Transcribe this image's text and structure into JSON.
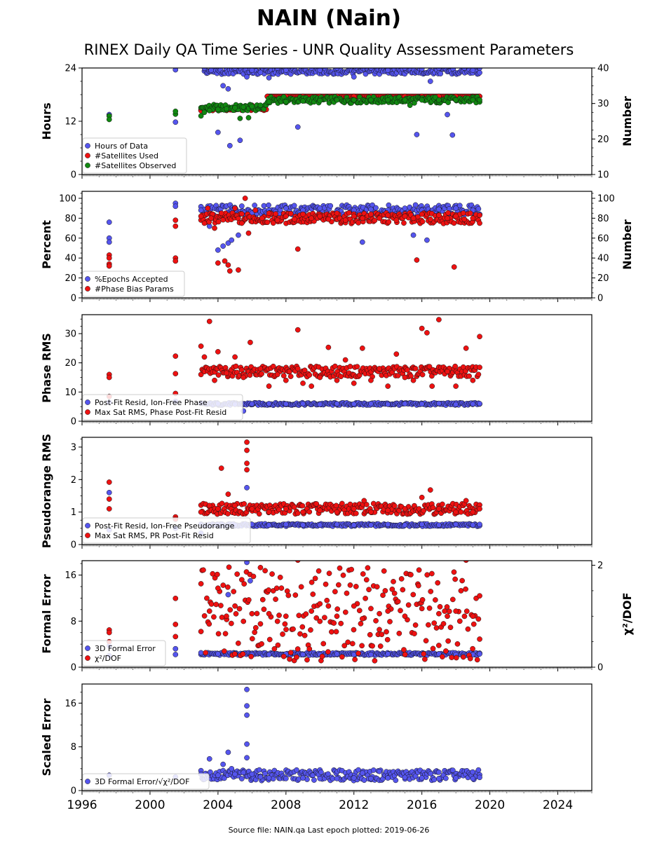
{
  "title": "NAIN (Nain)",
  "subtitle": "RINEX Daily QA Time Series - UNR Quality Assessment Parameters",
  "footer": "Source file: NAIN.qa Last epoch plotted: 2019-06-26",
  "colors": {
    "blue": "#5555ee",
    "red": "#ee1111",
    "green": "#118811",
    "edge": "#111111"
  },
  "chart_data": [
    {
      "type": "scatter",
      "panel": "hours",
      "ylabel": "Hours",
      "ylabel_right": "Number",
      "xlim": [
        1996,
        2026
      ],
      "ylim": [
        0,
        24
      ],
      "ylim_right": [
        10,
        40
      ],
      "yticks": [
        0,
        12,
        24
      ],
      "yticks_right": [
        10,
        20,
        30,
        40
      ],
      "legend": "lower-left",
      "series": [
        {
          "name": "Hours of Data",
          "color": "blue",
          "axis": "left",
          "x": [
            1997.6,
            1997.6,
            2001.5,
            2001.5,
            2003.2,
            2003.6,
            2004.0,
            2004.3,
            2004.6,
            2004.7,
            2005.0,
            2005.3,
            2005.7,
            2006.0,
            2006.5,
            2007.0,
            2007.5,
            2008.0,
            2008.7,
            2009.5,
            2010.0,
            2011.0,
            2012.0,
            2013.0,
            2014.0,
            2015.0,
            2015.7,
            2016.0,
            2016.5,
            2017.0,
            2017.5,
            2017.8,
            2018.5,
            2019.0,
            2019.4
          ],
          "y": [
            13.5,
            13.2,
            11.8,
            23.6,
            24.0,
            23.5,
            9.5,
            20.0,
            19.3,
            6.5,
            24.0,
            7.7,
            22.0,
            23.5,
            23.0,
            21.8,
            24.0,
            23.5,
            10.7,
            24.0,
            23.5,
            24.0,
            22.0,
            24.0,
            23.5,
            24.0,
            9.0,
            23.8,
            21.0,
            24.0,
            13.5,
            8.9,
            24.0,
            23.5,
            24.0
          ]
        },
        {
          "name": "#Satellites Used",
          "color": "red",
          "axis": "right",
          "x": [
            2003.0,
            2004.0,
            2005.0,
            2006.0,
            2006.9,
            2008.0,
            2009.0,
            2010.0,
            2011.0,
            2012.0,
            2013.0,
            2014.0,
            2015.0,
            2016.0,
            2017.0,
            2018.0,
            2019.0,
            2019.4
          ],
          "y": [
            28.0,
            28.5,
            29.0,
            29.5,
            32.0,
            32.0,
            32.0,
            32.0,
            32.0,
            32.0,
            32.0,
            32.0,
            32.0,
            32.0,
            32.0,
            32.0,
            32.0,
            32.0
          ]
        },
        {
          "name": "#Satellites Observed",
          "color": "green",
          "axis": "right",
          "x": [
            1997.6,
            1997.6,
            2001.5,
            2001.5,
            2003.0,
            2003.2,
            2003.5,
            2004.0,
            2004.5,
            2005.0,
            2005.5,
            2006.0,
            2006.5,
            2007.0,
            2008.0,
            2009.0,
            2010.0,
            2011.0,
            2012.0,
            2013.0,
            2014.0,
            2015.0,
            2016.0,
            2017.0,
            2018.0,
            2019.0,
            2019.4,
            2005.3,
            2005.8,
            2015.3
          ],
          "y": [
            26.5,
            25.5,
            27.0,
            27.8,
            26.5,
            27.5,
            28.0,
            28.3,
            28.5,
            28.8,
            29.0,
            29.2,
            29.5,
            30.5,
            30.5,
            30.7,
            30.8,
            31.0,
            31.0,
            31.0,
            31.0,
            31.0,
            31.0,
            31.0,
            31.0,
            31.0,
            31.0,
            25.8,
            26.0,
            29.5
          ]
        }
      ]
    },
    {
      "type": "scatter",
      "panel": "percent",
      "ylabel": "Percent",
      "ylabel_right": "Number",
      "xlim": [
        1996,
        2026
      ],
      "ylim": [
        0,
        107
      ],
      "ylim_right": [
        0,
        107
      ],
      "yticks": [
        0,
        20,
        40,
        60,
        80,
        100
      ],
      "yticks_right": [
        0,
        20,
        40,
        60,
        80,
        100
      ],
      "legend": "lower-left",
      "series": [
        {
          "name": "%Epochs Accepted",
          "color": "blue",
          "x": [
            1997.6,
            1997.6,
            1997.6,
            2001.5,
            2001.5,
            2003.0,
            2003.5,
            2004.0,
            2004.3,
            2004.6,
            2004.8,
            2005.2,
            2006.0,
            2007.0,
            2008.0,
            2009.0,
            2010.0,
            2011.0,
            2012.0,
            2012.5,
            2013.0,
            2014.0,
            2015.0,
            2015.5,
            2016.0,
            2016.3,
            2017.0,
            2018.0,
            2019.0,
            2019.4
          ],
          "y": [
            76,
            60,
            56,
            95,
            92,
            88,
            72,
            48,
            52,
            55,
            58,
            63,
            85,
            88,
            90,
            88,
            90,
            87,
            88,
            56,
            89,
            88,
            90,
            63,
            88,
            58,
            89,
            90,
            88,
            84
          ]
        },
        {
          "name": "#Phase Bias Params",
          "color": "red",
          "x": [
            1997.6,
            1997.6,
            1997.6,
            1997.6,
            2001.5,
            2001.5,
            2001.5,
            2001.5,
            2003.0,
            2003.2,
            2003.4,
            2003.6,
            2003.8,
            2004.0,
            2004.2,
            2004.4,
            2004.6,
            2004.7,
            2005.0,
            2005.2,
            2005.4,
            2005.6,
            2005.8,
            2006.2,
            2006.6,
            2007.0,
            2007.5,
            2008.0,
            2008.5,
            2008.7,
            2009.0,
            2009.5,
            2010.0,
            2010.5,
            2011.0,
            2011.5,
            2012.0,
            2012.5,
            2013.0,
            2013.5,
            2014.0,
            2014.5,
            2015.0,
            2015.5,
            2015.7,
            2016.0,
            2016.5,
            2017.0,
            2017.5,
            2017.9,
            2018.0,
            2018.5,
            2019.0,
            2019.4
          ],
          "y": [
            43,
            40,
            34,
            32,
            78,
            72,
            40,
            37,
            82,
            75,
            90,
            80,
            70,
            35,
            85,
            37,
            33,
            27,
            90,
            28,
            75,
            100,
            65,
            88,
            80,
            85,
            78,
            82,
            79,
            49,
            84,
            80,
            82,
            79,
            85,
            78,
            82,
            80,
            84,
            80,
            83,
            78,
            82,
            80,
            38,
            84,
            79,
            83,
            80,
            31,
            82,
            79,
            80,
            75
          ]
        }
      ]
    },
    {
      "type": "scatter",
      "panel": "phase-rms",
      "ylabel": "Phase RMS",
      "xlim": [
        1996,
        2026
      ],
      "ylim": [
        0,
        36.5
      ],
      "yticks": [
        0,
        10,
        20,
        30
      ],
      "legend": "lower-left",
      "series": [
        {
          "name": "Post-Fit Resid, Ion-Free Phase",
          "color": "blue",
          "x": [
            1997.6,
            2001.5,
            2003.0,
            2004.0,
            2005.0,
            2005.5,
            2006.0,
            2007.0,
            2008.0,
            2009.0,
            2010.0,
            2011.0,
            2012.0,
            2013.0,
            2014.0,
            2015.0,
            2016.0,
            2017.0,
            2018.0,
            2019.0,
            2019.4
          ],
          "y": [
            6.5,
            6.8,
            6.2,
            6.0,
            5.8,
            3.5,
            5.9,
            6.0,
            5.9,
            6.0,
            5.8,
            6.0,
            5.9,
            6.0,
            5.8,
            6.0,
            5.9,
            6.1,
            5.8,
            5.9,
            6.0
          ]
        },
        {
          "name": "Max Sat RMS, Phase Post-Fit Resid",
          "color": "red",
          "x": [
            1997.6,
            1997.6,
            1997.6,
            2001.5,
            2001.5,
            2001.5,
            2003.0,
            2003.2,
            2003.5,
            2003.8,
            2004.0,
            2004.5,
            2005.0,
            2005.5,
            2005.9,
            2006.5,
            2007.0,
            2007.5,
            2008.0,
            2008.7,
            2009.0,
            2009.5,
            2010.0,
            2010.5,
            2011.0,
            2011.5,
            2012.0,
            2012.5,
            2013.0,
            2013.5,
            2014.0,
            2014.5,
            2015.0,
            2015.5,
            2016.0,
            2016.3,
            2016.6,
            2017.0,
            2017.5,
            2018.0,
            2018.6,
            2019.0,
            2019.4
          ],
          "y": [
            16,
            15,
            8.5,
            22.3,
            16.3,
            9.5,
            25.7,
            22.0,
            34.2,
            14.0,
            23.8,
            16.5,
            22.0,
            15.0,
            27.0,
            18.0,
            12.0,
            16.0,
            14.0,
            31.3,
            13.0,
            12.0,
            15.0,
            25.3,
            14.0,
            21.0,
            13.0,
            25.0,
            14.0,
            18.0,
            12.0,
            23.0,
            15.0,
            14.0,
            31.8,
            30.3,
            12.0,
            34.8,
            17.0,
            12.0,
            25.0,
            14.0,
            29.0
          ]
        }
      ]
    },
    {
      "type": "scatter",
      "panel": "pseudorange-rms",
      "ylabel": "Pseudorange RMS",
      "xlim": [
        1996,
        2026
      ],
      "ylim": [
        0,
        3.3
      ],
      "yticks": [
        0,
        1,
        2,
        3
      ],
      "legend": "lower-left",
      "series": [
        {
          "name": "Post-Fit Resid, Ion-Free Pseudorange",
          "color": "blue",
          "x": [
            1997.6,
            1997.6,
            2001.5,
            2003.0,
            2004.0,
            2005.0,
            2005.7,
            2006.0,
            2007.0,
            2008.0,
            2009.0,
            2010.0,
            2011.0,
            2012.0,
            2013.0,
            2014.0,
            2015.0,
            2016.0,
            2017.0,
            2018.0,
            2019.0,
            2019.4
          ],
          "y": [
            1.6,
            0.45,
            0.5,
            0.35,
            0.62,
            0.6,
            1.75,
            0.62,
            0.6,
            0.62,
            0.6,
            0.6,
            0.62,
            0.6,
            0.6,
            0.62,
            0.6,
            0.62,
            0.6,
            0.62,
            0.6,
            0.62
          ]
        },
        {
          "name": "Max Sat RMS, PR Post-Fit Resid",
          "color": "red",
          "x": [
            1997.6,
            1997.6,
            1997.6,
            2001.5,
            2001.5,
            2003.0,
            2003.5,
            2004.0,
            2004.2,
            2004.6,
            2005.0,
            2005.7,
            2005.7,
            2005.7,
            2005.7,
            2006.0,
            2007.0,
            2008.0,
            2009.0,
            2010.0,
            2011.0,
            2012.0,
            2012.6,
            2013.0,
            2014.0,
            2015.0,
            2016.0,
            2016.5,
            2017.0,
            2018.0,
            2018.6,
            2019.0,
            2019.4
          ],
          "y": [
            1.92,
            1.4,
            1.1,
            0.85,
            0.78,
            1.0,
            1.2,
            1.1,
            2.35,
            1.55,
            1.2,
            3.15,
            2.9,
            2.5,
            2.3,
            1.1,
            1.0,
            1.1,
            1.0,
            1.05,
            1.0,
            1.1,
            1.35,
            1.0,
            1.05,
            1.1,
            1.45,
            1.68,
            1.1,
            1.0,
            1.35,
            1.0,
            1.1
          ]
        }
      ]
    },
    {
      "type": "scatter",
      "panel": "formal-error",
      "ylabel": "Formal Error",
      "ylabel_right": "χ²/DOF",
      "xlim": [
        1996,
        2026
      ],
      "ylim": [
        0,
        18.5
      ],
      "ylim_right": [
        0,
        2.09
      ],
      "yticks": [
        0,
        8,
        16
      ],
      "yticks_right": [
        0,
        2
      ],
      "legend": "lower-left",
      "series": [
        {
          "name": "3D Formal Error",
          "color": "blue",
          "axis": "left",
          "x": [
            1997.6,
            1997.6,
            2001.5,
            2001.5,
            2003.0,
            2004.0,
            2004.6,
            2005.0,
            2005.7,
            2005.9,
            2006.0,
            2007.0,
            2008.0,
            2009.0,
            2010.0,
            2011.0,
            2012.0,
            2013.0,
            2014.0,
            2015.0,
            2016.0,
            2017.0,
            2018.0,
            2019.0,
            2019.4
          ],
          "y": [
            3.7,
            2.0,
            3.2,
            2.2,
            2.5,
            2.3,
            12.6,
            2.3,
            18.2,
            15.0,
            2.2,
            2.2,
            2.3,
            2.2,
            2.2,
            2.3,
            2.2,
            2.2,
            2.3,
            2.2,
            2.2,
            2.3,
            2.2,
            2.2,
            2.3
          ]
        },
        {
          "name": "χ²/DOF",
          "color": "red",
          "axis": "right",
          "x": [
            1997.6,
            1997.6,
            1997.6,
            2001.5,
            2001.5,
            2001.5,
            2003.0,
            2003.5,
            2004.0,
            2004.5,
            2005.0,
            2005.5,
            2006.0,
            2006.5,
            2007.0,
            2007.5,
            2008.0,
            2008.7,
            2009.5,
            2010.0,
            2010.5,
            2011.0,
            2012.0,
            2012.5,
            2013.0,
            2013.5,
            2014.0,
            2015.0,
            2015.8,
            2016.0,
            2017.0,
            2017.5,
            2018.0,
            2018.6,
            2019.0,
            2019.4
          ],
          "y": [
            0.73,
            0.68,
            0.5,
            1.35,
            0.84,
            0.6,
            0.7,
            1.1,
            1.55,
            1.0,
            1.2,
            0.9,
            1.05,
            0.85,
            1.05,
            0.9,
            1.0,
            2.1,
            1.1,
            0.9,
            1.2,
            1.0,
            1.2,
            0.95,
            1.15,
            1.05,
            1.1,
            1.0,
            1.6,
            1.15,
            1.05,
            1.0,
            1.1,
            2.1,
            1.0,
            1.4
          ]
        }
      ]
    },
    {
      "type": "scatter",
      "panel": "scaled-error",
      "ylabel": "Scaled Error",
      "xlim": [
        1996,
        2026
      ],
      "ylim": [
        0,
        19.5
      ],
      "yticks": [
        0,
        8,
        16
      ],
      "xticks": [
        1996,
        2000,
        2004,
        2008,
        2012,
        2016,
        2020,
        2024
      ],
      "legend": "lower-left",
      "series": [
        {
          "name": "3D Formal Error/√χ²/DOF",
          "color": "blue",
          "x": [
            1997.6,
            2001.5,
            2003.0,
            2003.5,
            2004.0,
            2004.3,
            2004.6,
            2004.8,
            2005.0,
            2005.5,
            2005.7,
            2005.7,
            2005.7,
            2005.7,
            2005.7,
            2006.0,
            2006.5,
            2007.0,
            2008.0,
            2009.0,
            2010.0,
            2011.0,
            2012.0,
            2012.5,
            2013.0,
            2013.5,
            2014.0,
            2015.0,
            2016.0,
            2017.0,
            2018.0,
            2019.0,
            2019.4
          ],
          "y": [
            2.8,
            2.5,
            3.0,
            5.8,
            2.8,
            4.8,
            7.0,
            4.0,
            3.0,
            3.3,
            18.5,
            15.5,
            13.8,
            8.5,
            6.0,
            3.0,
            2.5,
            2.3,
            2.2,
            2.3,
            2.2,
            2.2,
            2.3,
            3.2,
            2.2,
            3.5,
            2.3,
            2.4,
            2.3,
            2.2,
            2.3,
            2.2,
            2.4
          ]
        }
      ]
    }
  ]
}
